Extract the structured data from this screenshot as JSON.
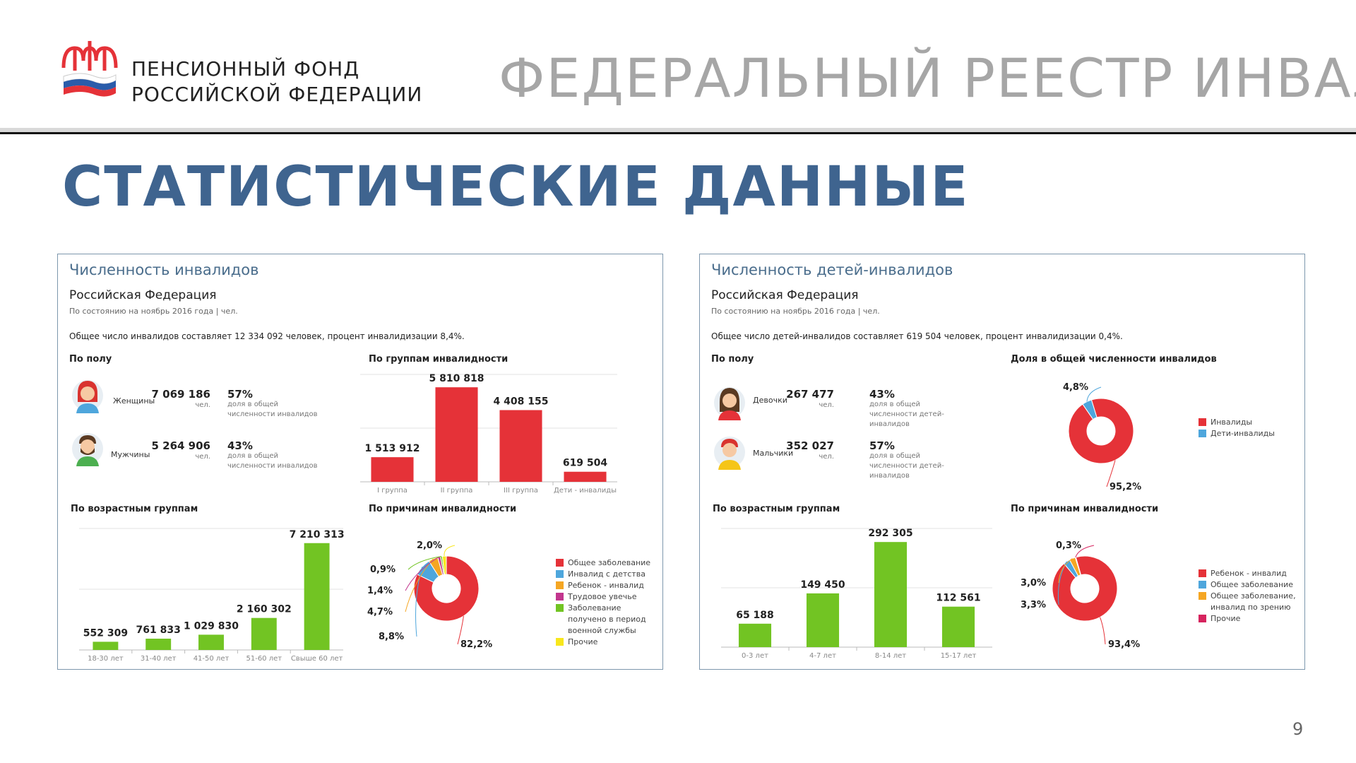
{
  "header": {
    "org_line1": "ПЕНСИОННЫЙ ФОНД",
    "org_line2": "РОССИЙСКОЙ ФЕДЕРАЦИИ",
    "title": "ФЕДЕРАЛЬНЫЙ РЕЕСТР ИНВАЛИДОВ"
  },
  "page_title": "СТАТИСТИЧЕСКИЕ ДАННЫЕ",
  "page_number": "9",
  "colors": {
    "red": "#e53238",
    "green": "#72c423",
    "blue": "#4ea6dc",
    "orange": "#f5a623",
    "yellow": "#f8e71c",
    "crimson": "#d6235e",
    "title_blue": "#3f648f"
  },
  "left": {
    "title": "Численность инвалидов",
    "region": "Российская Федерация",
    "as_of": "По состоянию на ноябрь 2016 года   |   чел.",
    "summary": "Общее число инвалидов составляет 12 334 092 человек, процент инвалидизации 8,4%.",
    "sex": {
      "heading": "По полу",
      "female": {
        "label": "Женщины",
        "value": "7 069 186",
        "unit": "чел.",
        "pct": "57%",
        "note": "доля в общей численности инвалидов"
      },
      "male": {
        "label": "Мужчины",
        "value": "5 264 906",
        "unit": "чел.",
        "pct": "43%",
        "note": "доля в общей численности инвалидов"
      }
    },
    "groups_heading": "По группам инвалидности",
    "age_heading": "По возрастным группам",
    "causes_heading": "По причинам инвалидности"
  },
  "right": {
    "title": "Численность детей-инвалидов",
    "region": "Российская Федерация",
    "as_of": "По состоянию на ноябрь 2016 года   |   чел.",
    "summary": "Общее число детей-инвалидов составляет 619 504 человек, процент инвалидизации 0,4%.",
    "sex": {
      "heading": "По полу",
      "female": {
        "label": "Девочки",
        "value": "267 477",
        "unit": "чел.",
        "pct": "43%",
        "note": "доля в общей численности детей-инвалидов"
      },
      "male": {
        "label": "Мальчики",
        "value": "352 027",
        "unit": "чел.",
        "pct": "57%",
        "note": "доля в общей численности детей-инвалидов"
      }
    },
    "share_heading": "Доля в общей численности инвалидов",
    "age_heading": "По возрастным группам",
    "causes_heading": "По причинам инвалидности"
  },
  "chart_data": [
    {
      "id": "left-groups",
      "type": "bar",
      "categories": [
        "I группа",
        "II группа",
        "III группа",
        "Дети - инвалиды"
      ],
      "values": [
        1513912,
        5810818,
        4408155,
        619504
      ],
      "labels": [
        "1 513 912",
        "5 810 818",
        "4 408 155",
        "619 504"
      ],
      "color": "#e53238",
      "ylim": [
        0,
        6600000
      ]
    },
    {
      "id": "left-age",
      "type": "bar",
      "categories": [
        "18-30 лет",
        "31-40 лет",
        "41-50 лет",
        "51-60 лет",
        "Свыше 60 лет"
      ],
      "values": [
        552309,
        761833,
        1029830,
        2160302,
        7210313
      ],
      "labels": [
        "552 309",
        "761 833",
        "1 029 830",
        "2 160 302",
        "7 210 313"
      ],
      "color": "#72c423",
      "ylim": [
        0,
        8200000
      ]
    },
    {
      "id": "left-causes",
      "type": "pie",
      "values": [
        82.2,
        8.8,
        4.7,
        1.4,
        0.9,
        2.0
      ],
      "labels": [
        "82,2%",
        "8,8%",
        "4,7%",
        "1,4%",
        "0,9%",
        "2,0%"
      ],
      "legend": [
        "Общее заболевание",
        "Инвалид с детства",
        "Ребенок - инвалид",
        "Трудовое увечье",
        "Заболевание получено в период военной службы",
        "Прочие"
      ],
      "colors": [
        "#e53238",
        "#4ea6dc",
        "#f5a623",
        "#c2368e",
        "#72c423",
        "#f8e71c"
      ]
    },
    {
      "id": "right-share",
      "type": "pie",
      "values": [
        95.2,
        4.8
      ],
      "labels": [
        "95,2%",
        "4,8%"
      ],
      "legend": [
        "Инвалиды",
        "Дети-инвалиды"
      ],
      "colors": [
        "#e53238",
        "#4ea6dc"
      ]
    },
    {
      "id": "right-age",
      "type": "bar",
      "categories": [
        "0-3 лет",
        "4-7 лет",
        "8-14 лет",
        "15-17 лет"
      ],
      "values": [
        65188,
        149450,
        292305,
        112561
      ],
      "labels": [
        "65 188",
        "149 450",
        "292 305",
        "112 561"
      ],
      "color": "#72c423",
      "ylim": [
        0,
        330000
      ]
    },
    {
      "id": "right-causes",
      "type": "pie",
      "values": [
        93.4,
        3.3,
        3.0,
        0.3
      ],
      "labels": [
        "93,4%",
        "3,3%",
        "3,0%",
        "0,3%"
      ],
      "legend": [
        "Ребенок - инвалид",
        "Общее заболевание",
        "Общее заболевание, инвалид по зрению",
        "Прочие"
      ],
      "colors": [
        "#e53238",
        "#4ea6dc",
        "#f5a623",
        "#d6235e"
      ]
    }
  ]
}
